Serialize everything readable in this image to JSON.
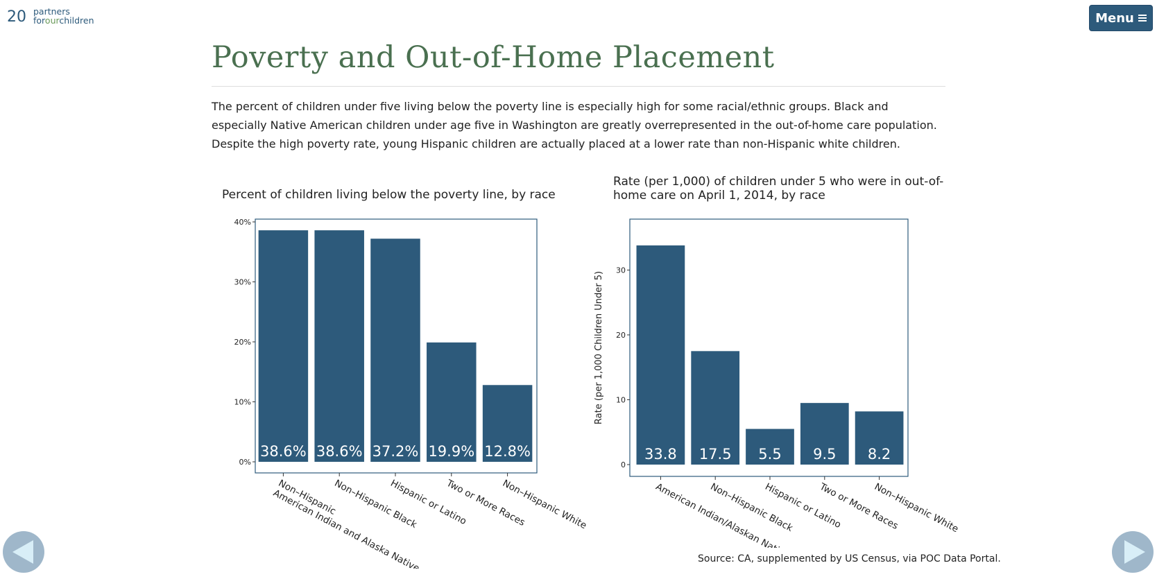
{
  "header": {
    "page_number": "20",
    "logo_line1": "partners",
    "logo_for": "for",
    "logo_our": "our",
    "logo_children": "children",
    "menu_label": "Menu",
    "menu_icon": "hamburger-icon"
  },
  "page": {
    "title": "Poverty and Out-of-Home Placement",
    "intro": "The percent of children under five living below the poverty line is especially high for some racial/ethnic groups. Black and especially Native American children under age five in Washington are greatly overrepresented in the out-of-home care population. Despite the high poverty rate, young Hispanic children are actually placed at a lower rate than non-Hispanic white children.",
    "source": "Source: CA, supplemented by US Census, via POC Data Portal."
  },
  "colors": {
    "bar": "#2d5a7b",
    "title": "#4a7050",
    "accent": "#2d5a7b",
    "nav": "#9fb7ca"
  },
  "navigation": {
    "prev_icon": "arrow-left-icon",
    "next_icon": "arrow-right-icon"
  },
  "chart_data": [
    {
      "type": "bar",
      "title": "Percent of children living below the poverty line, by race",
      "categories": [
        [
          "Non–Hispanic",
          "American Indian and Alaska Native"
        ],
        [
          "Non–Hispanic Black"
        ],
        [
          "Hispanic or Latino"
        ],
        [
          "Two or More Races"
        ],
        [
          "Non–Hispanic White"
        ]
      ],
      "values": [
        38.6,
        38.6,
        37.2,
        19.9,
        12.8
      ],
      "data_labels": [
        "38.6%",
        "38.6%",
        "37.2%",
        "19.9%",
        "12.8%"
      ],
      "ylim": [
        0,
        40
      ],
      "yticks": [
        0,
        10,
        20,
        30,
        40
      ],
      "ytick_labels": [
        "0%",
        "10%",
        "20%",
        "30%",
        "40%"
      ],
      "xlabel": "",
      "ylabel": "",
      "grid": false
    },
    {
      "type": "bar",
      "title": "Rate (per 1,000) of children under 5 who were in out-of-home care on April 1, 2014, by race",
      "categories": [
        [
          "American Indian/Alaskan Native"
        ],
        [
          "Non–Hispanic Black"
        ],
        [
          "Hispanic or Latino"
        ],
        [
          "Two or More Races"
        ],
        [
          "Non–Hispanic White"
        ]
      ],
      "values": [
        33.8,
        17.5,
        5.5,
        9.5,
        8.2
      ],
      "data_labels": [
        "33.8",
        "17.5",
        "5.5",
        "9.5",
        "8.2"
      ],
      "ylim": [
        0,
        35.5
      ],
      "yticks": [
        0,
        10,
        20,
        30
      ],
      "ytick_labels": [
        "0",
        "10",
        "20",
        "30"
      ],
      "xlabel": "",
      "ylabel": "Rate (per 1,000 Children Under 5)",
      "grid": false
    }
  ]
}
